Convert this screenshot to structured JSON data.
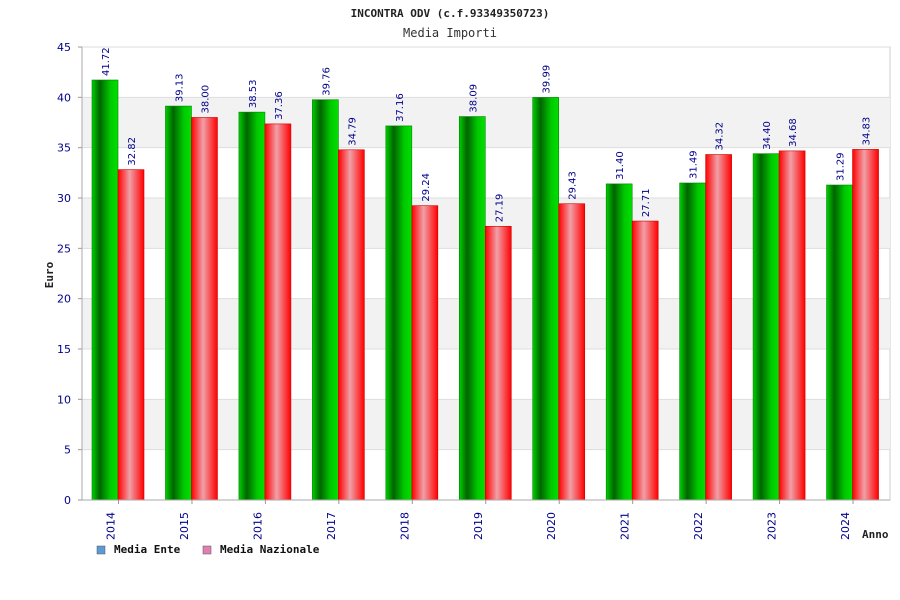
{
  "chart_data": {
    "type": "bar",
    "title": "INCONTRA ODV (c.f.93349350723)",
    "subtitle": "Media Importi",
    "xlabel": "Anno",
    "ylabel": "Euro",
    "ylim": [
      0,
      45
    ],
    "yticks": [
      "0",
      "5",
      "10",
      "15",
      "20",
      "25",
      "30",
      "35",
      "40",
      "45"
    ],
    "categories": [
      "2014",
      "2015",
      "2016",
      "2017",
      "2018",
      "2019",
      "2020",
      "2021",
      "2022",
      "2023",
      "2024"
    ],
    "series": [
      {
        "name": "Media Ente",
        "color": "#00c000",
        "legend_color": "#5b9bd5",
        "values": [
          41.72,
          39.13,
          38.53,
          39.76,
          37.16,
          38.09,
          39.99,
          31.4,
          31.49,
          34.4,
          31.29
        ],
        "labels": [
          "41.72",
          "39.13",
          "38.53",
          "39.76",
          "37.16",
          "38.09",
          "39.99",
          "31.40",
          "31.49",
          "34.40",
          "31.29"
        ]
      },
      {
        "name": "Media Nazionale",
        "color": "#ff1a1a",
        "legend_color": "#e080b0",
        "values": [
          32.82,
          38.0,
          37.36,
          34.79,
          29.24,
          27.19,
          29.43,
          27.71,
          34.32,
          34.68,
          34.83
        ],
        "labels": [
          "32.82",
          "38.00",
          "37.36",
          "34.79",
          "29.24",
          "27.19",
          "29.43",
          "27.71",
          "34.32",
          "34.68",
          "34.83"
        ]
      }
    ],
    "grid": true,
    "legend_position": "bottom-left"
  }
}
